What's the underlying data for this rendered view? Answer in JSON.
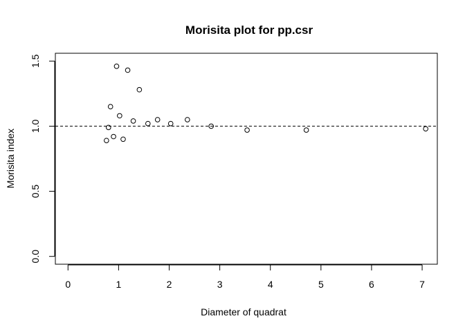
{
  "chart_data": {
    "type": "scatter",
    "title": "Morisita plot for pp.csr",
    "xlabel": "Diameter of quadrat",
    "ylabel": "Morisita index",
    "xlim": [
      -0.25,
      7.3
    ],
    "ylim": [
      -0.06,
      1.56
    ],
    "xticks": [
      0,
      1,
      2,
      3,
      4,
      5,
      6,
      7
    ],
    "xtick_labels": [
      "0",
      "1",
      "2",
      "3",
      "4",
      "5",
      "6",
      "7"
    ],
    "yticks": [
      0.0,
      0.5,
      1.0,
      1.5
    ],
    "ytick_labels": [
      "0.0",
      "0.5",
      "1.0",
      "1.5"
    ],
    "reference_line": {
      "y": 1.0,
      "style": "dashed"
    },
    "grid": false,
    "legend": "none",
    "series": [
      {
        "x": [
          0.76,
          0.8,
          0.84,
          0.9,
          0.96,
          1.02,
          1.09,
          1.18,
          1.29,
          1.41,
          1.58,
          1.77,
          2.03,
          2.36,
          2.83,
          3.54,
          4.71,
          7.07
        ],
        "y": [
          0.89,
          0.99,
          1.15,
          0.92,
          1.46,
          1.08,
          0.9,
          1.43,
          1.04,
          1.28,
          1.02,
          1.05,
          1.02,
          1.05,
          1.0,
          0.97,
          0.97,
          0.98
        ]
      }
    ]
  }
}
